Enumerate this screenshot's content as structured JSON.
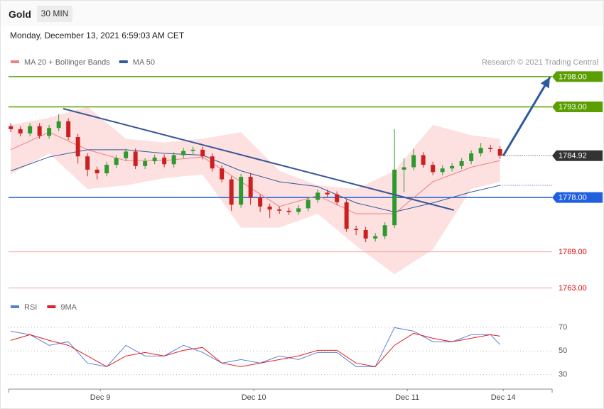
{
  "header": {
    "symbol": "Gold",
    "timeframe": "30 MIN",
    "timestamp": "Monday, December 13, 2021 6:59:03 AM CET"
  },
  "chart_data": [
    {
      "type": "candlestick",
      "source": "Research © 2021 Trading Central",
      "x": [
        0,
        3,
        6,
        9,
        12,
        15,
        18,
        21,
        24,
        27,
        30,
        33,
        36,
        39,
        42,
        45,
        48,
        51,
        54,
        57,
        60,
        63,
        66,
        69,
        72,
        75,
        78,
        81,
        84,
        87,
        90,
        93,
        96,
        99,
        102,
        105,
        108,
        111,
        114,
        117,
        120,
        123,
        126,
        129,
        132,
        135,
        138,
        141,
        144,
        147,
        150,
        153
      ],
      "open": [
        1789.8,
        1789.3,
        1788.6,
        1789.8,
        1788.2,
        1789.5,
        1790.6,
        1788.0,
        1784.8,
        1782.6,
        1782.0,
        1783.4,
        1784.5,
        1785.6,
        1783.2,
        1784.0,
        1784.6,
        1783.5,
        1785.0,
        1785.7,
        1785.9,
        1784.8,
        1782.8,
        1781.0,
        1776.8,
        1781.4,
        1778.0,
        1776.5,
        1776.0,
        1775.8,
        1775.6,
        1776.2,
        1777.6,
        1778.8,
        1778.5,
        1777.2,
        1772.8,
        1772.6,
        1771.2,
        1771.6,
        1773.4,
        1782.6,
        1783.0,
        1785.0,
        1783.4,
        1782.2,
        1782.8,
        1783.2,
        1784.0,
        1785.3,
        1786.2,
        1786.0
      ],
      "high": [
        1790.3,
        1789.8,
        1790.3,
        1790.3,
        1790.0,
        1791.8,
        1791.1,
        1788.5,
        1785.3,
        1783.1,
        1783.9,
        1785.0,
        1786.1,
        1786.1,
        1784.5,
        1785.1,
        1785.1,
        1785.5,
        1786.2,
        1786.4,
        1786.4,
        1785.3,
        1783.3,
        1781.5,
        1781.9,
        1781.9,
        1778.5,
        1777.0,
        1776.5,
        1776.3,
        1776.7,
        1778.1,
        1779.3,
        1779.3,
        1779.0,
        1777.7,
        1773.3,
        1773.1,
        1772.1,
        1773.9,
        1789.3,
        1784.5,
        1786.0,
        1785.5,
        1783.9,
        1783.3,
        1783.7,
        1784.5,
        1785.8,
        1787.0,
        1786.7,
        1786.5
      ],
      "low": [
        1788.8,
        1788.1,
        1788.1,
        1787.7,
        1787.7,
        1789.0,
        1787.5,
        1783.6,
        1781.5,
        1781.0,
        1781.5,
        1782.9,
        1784.0,
        1782.7,
        1782.7,
        1783.5,
        1783.0,
        1783.0,
        1784.5,
        1785.2,
        1784.3,
        1782.3,
        1780.5,
        1775.8,
        1776.3,
        1776.8,
        1775.6,
        1774.6,
        1775.3,
        1775.1,
        1775.1,
        1775.7,
        1777.1,
        1778.0,
        1776.7,
        1772.3,
        1771.8,
        1770.6,
        1770.7,
        1771.1,
        1772.9,
        1778.9,
        1782.5,
        1782.9,
        1781.7,
        1781.7,
        1782.3,
        1782.7,
        1783.5,
        1784.8,
        1785.5,
        1784.4
      ],
      "close": [
        1789.3,
        1788.6,
        1789.8,
        1788.2,
        1789.5,
        1790.6,
        1788.0,
        1784.8,
        1782.6,
        1782.0,
        1783.4,
        1784.5,
        1785.6,
        1783.2,
        1784.0,
        1784.6,
        1783.5,
        1785.0,
        1785.7,
        1785.9,
        1784.8,
        1782.8,
        1781.0,
        1776.8,
        1781.4,
        1778.0,
        1776.5,
        1776.0,
        1775.8,
        1775.6,
        1776.2,
        1777.6,
        1778.8,
        1778.5,
        1777.2,
        1772.8,
        1772.6,
        1771.2,
        1771.6,
        1773.4,
        1782.6,
        1783.0,
        1785.0,
        1783.4,
        1782.2,
        1782.8,
        1783.2,
        1784.0,
        1785.3,
        1786.2,
        1786.0,
        1784.9
      ],
      "up_color": "#2e9a2e",
      "down_color": "#cc2020",
      "xlim": [
        -0.7,
        169.3
      ],
      "ylim": [
        1761.2,
        1799.4
      ],
      "series": [
        {
          "name": "MA 20 + Bollinger Bands",
          "color": "#f08080",
          "band_color": "#fde0e0",
          "x": [
            0,
            12,
            24,
            36,
            48,
            60,
            72,
            84,
            96,
            108,
            120,
            132,
            144,
            153
          ],
          "values": [
            1785.9,
            1788.8,
            1785.9,
            1784.1,
            1784.1,
            1784.7,
            1780.6,
            1776.5,
            1778.3,
            1775.3,
            1775.3,
            1780.6,
            1783.0,
            1784.1
          ],
          "upper": [
            1790.0,
            1791.2,
            1793.0,
            1787.7,
            1787.1,
            1787.7,
            1788.8,
            1782.4,
            1780.0,
            1779.4,
            1782.4,
            1790.0,
            1788.3,
            1787.7
          ],
          "lower": [
            1781.8,
            1785.3,
            1779.4,
            1780.0,
            1781.2,
            1781.8,
            1773.0,
            1773.0,
            1775.3,
            1770.0,
            1765.3,
            1769.4,
            1779.4,
            1780.6
          ]
        },
        {
          "name": "MA 50",
          "color": "#2e5a9e",
          "x": [
            0,
            12,
            24,
            36,
            48,
            60,
            72,
            84,
            96,
            108,
            120,
            132,
            144,
            153
          ],
          "values": [
            1782.4,
            1784.7,
            1785.9,
            1785.9,
            1785.3,
            1785.0,
            1782.4,
            1780.6,
            1779.8,
            1777.1,
            1775.6,
            1777.1,
            1778.9,
            1780.0
          ]
        }
      ],
      "levels": [
        {
          "value": 1798,
          "label": "1798.00",
          "color": "#5a9e00",
          "style": "solid",
          "boxed": true
        },
        {
          "value": 1793,
          "label": "1793.00",
          "color": "#5a9e00",
          "style": "solid",
          "boxed": true
        },
        {
          "value": 1784.92,
          "label": "1784.92",
          "color": "#333333",
          "style": "dotted",
          "boxed": true
        },
        {
          "value": 1778,
          "label": "1778.00",
          "color": "#2060e0",
          "style": "solid",
          "boxed": true
        },
        {
          "value": 1769,
          "label": "1769.00",
          "color": "#f2a0a0",
          "style": "solid",
          "boxed": false,
          "text_color": "#e00000"
        },
        {
          "value": 1763,
          "label": "1763.00",
          "color": "#f2a0a0",
          "style": "solid",
          "boxed": false,
          "text_color": "#e00000"
        }
      ],
      "trendline": {
        "x": [
          16.4,
          138.6
        ],
        "values": [
          1792.7,
          1775.9
        ],
        "color": "#3a5698"
      },
      "arrow": {
        "x": [
          154,
          168.6
        ],
        "values": [
          1784.9,
          1797.9
        ],
        "color": "#2e5a9e"
      }
    },
    {
      "type": "line",
      "x": [
        0,
        6,
        12,
        18,
        24,
        30,
        36,
        42,
        48,
        54,
        60,
        66,
        72,
        78,
        84,
        90,
        96,
        102,
        108,
        114,
        120,
        126,
        132,
        138,
        144,
        150,
        153
      ],
      "series": [
        {
          "name": "RSI",
          "color": "#5b7fd6",
          "values": [
            66.8,
            63.8,
            54.8,
            57.8,
            39.8,
            36.8,
            54.8,
            45.8,
            45.8,
            54.8,
            48.8,
            39.8,
            42.8,
            39.8,
            45.8,
            42.8,
            48.8,
            48.8,
            36.8,
            36.8,
            69.8,
            66.8,
            57.8,
            57.8,
            63.8,
            63.8,
            55.4
          ]
        },
        {
          "name": "9MA",
          "color": "#e02020",
          "values": [
            59.0,
            63.8,
            59.0,
            54.8,
            45.8,
            36.8,
            45.8,
            48.8,
            45.8,
            50.6,
            53.0,
            39.8,
            36.8,
            39.8,
            42.8,
            45.8,
            50.6,
            50.6,
            39.8,
            36.8,
            54.8,
            65.0,
            60.8,
            57.8,
            60.8,
            63.8,
            62.6
          ]
        }
      ],
      "xlim": [
        -0.7,
        169.3
      ],
      "ylim": [
        22,
        76
      ],
      "yticks": [
        30,
        50,
        70
      ],
      "xticks": [
        {
          "value": 28,
          "label": "Dec 9"
        },
        {
          "value": 76,
          "label": "Dec 10"
        },
        {
          "value": 124,
          "label": "Dec 11"
        },
        {
          "value": 154,
          "label": "Dec 14"
        }
      ]
    }
  ]
}
